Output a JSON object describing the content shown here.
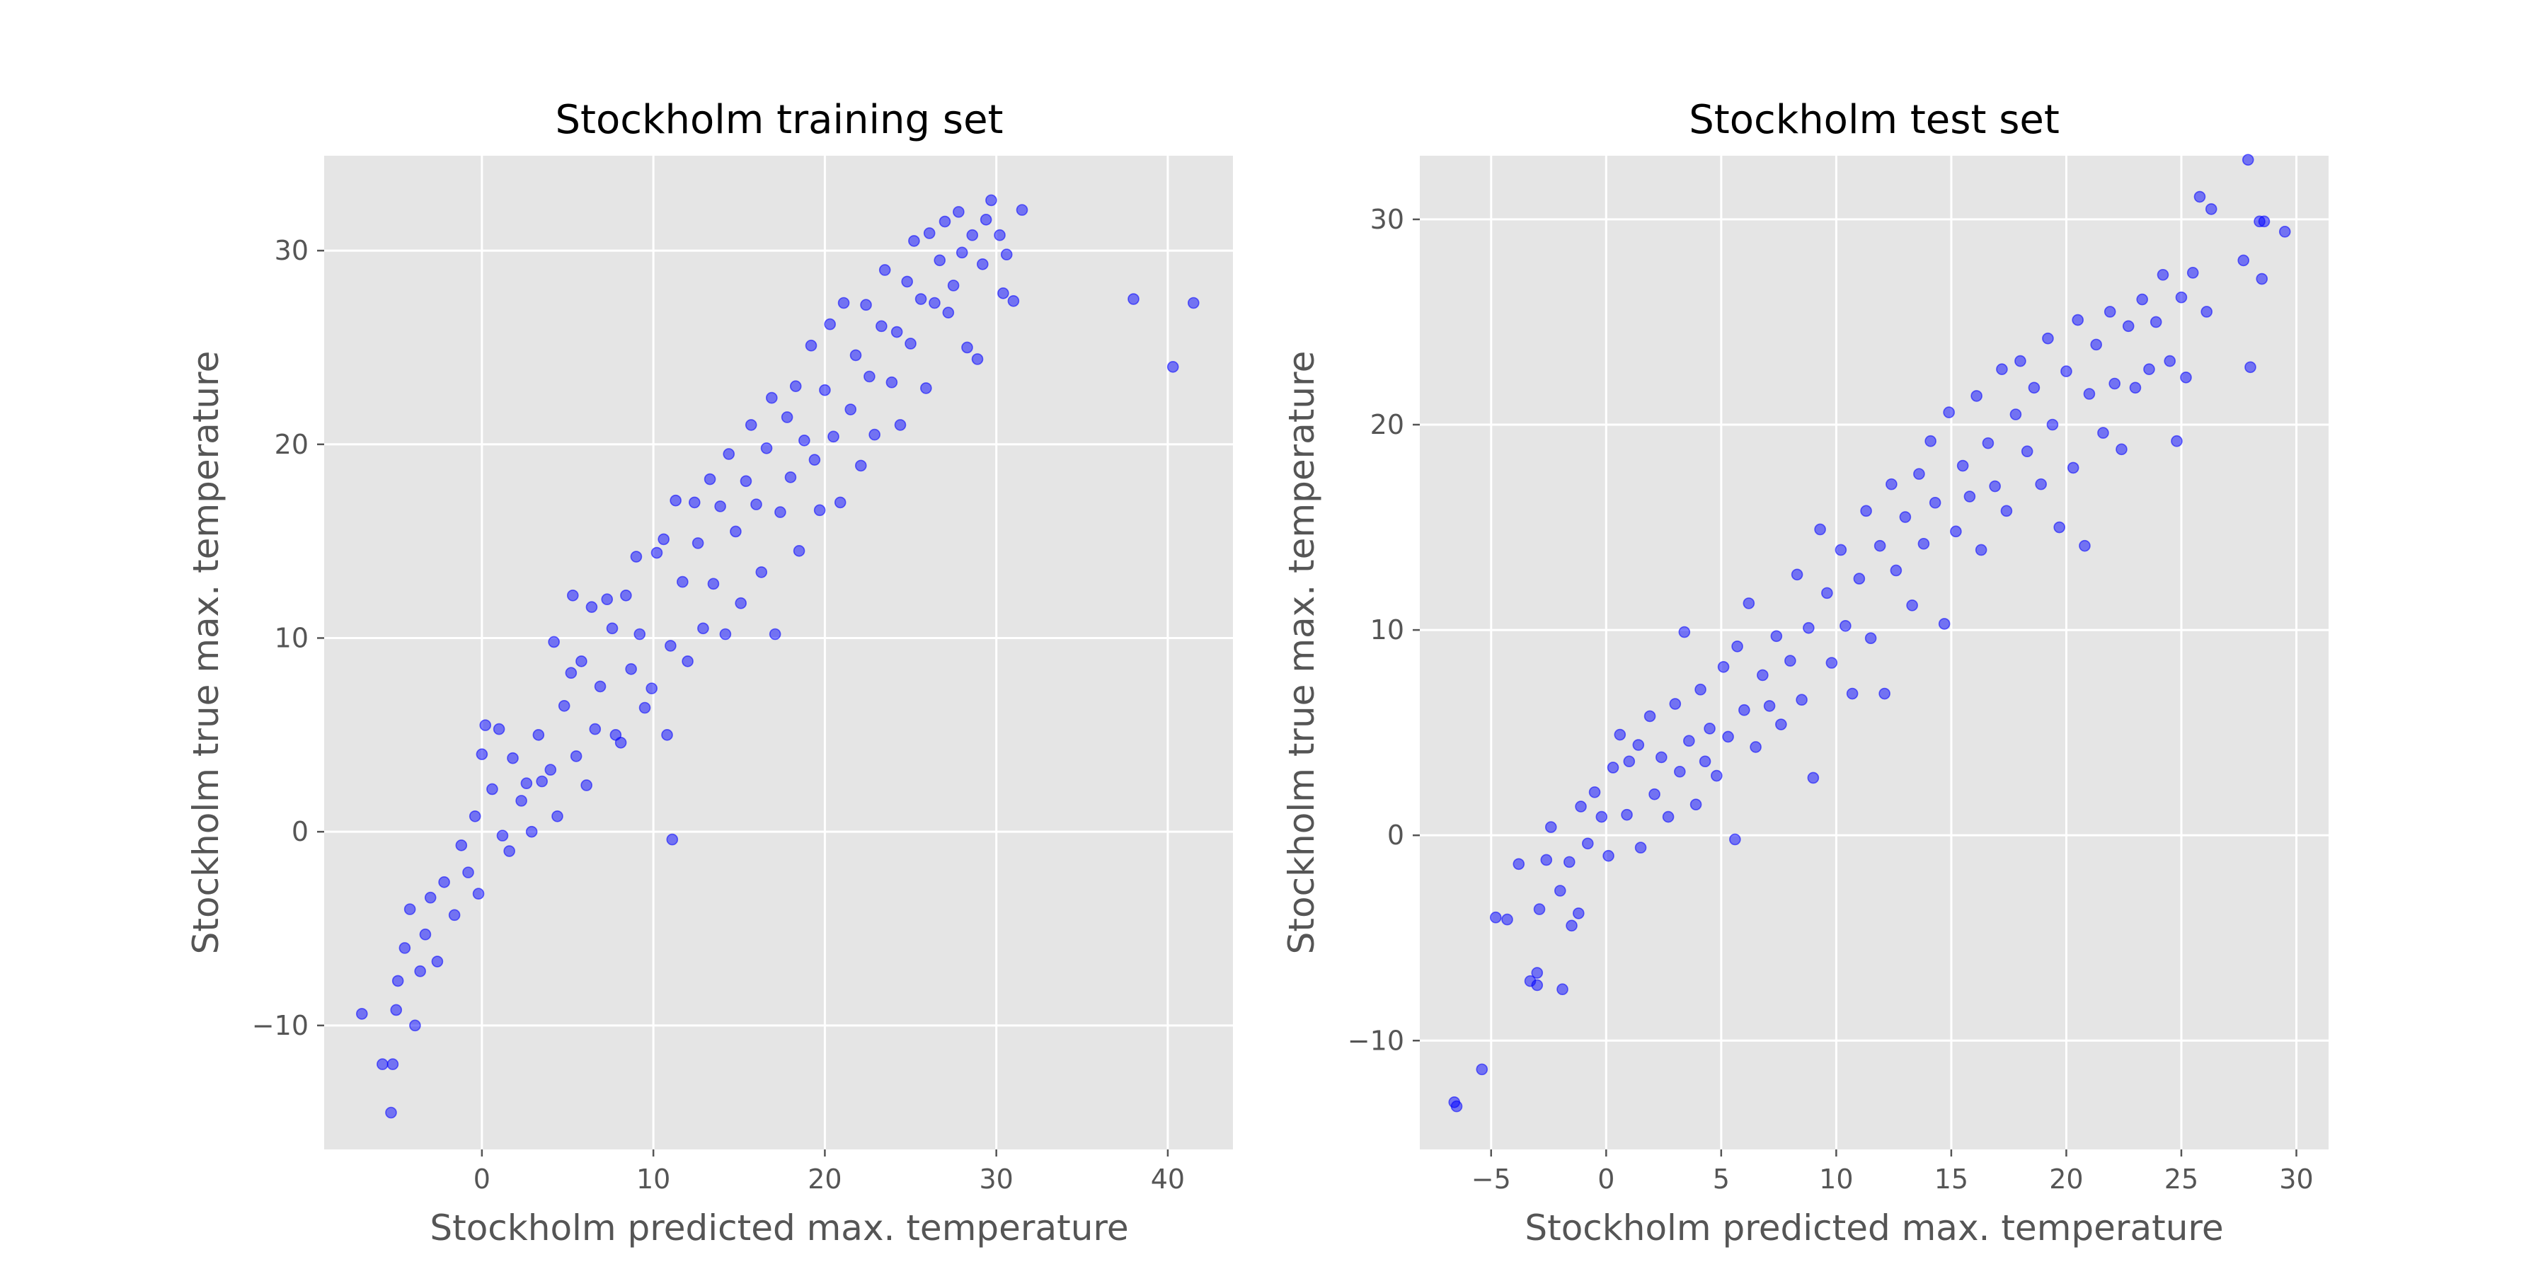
{
  "chart_data": [
    {
      "type": "scatter",
      "title": "Stockholm training set",
      "xlabel": "Stockholm predicted max. temperature",
      "ylabel": "Stockholm true max. temperature",
      "xlim": [
        -9.2,
        43.8
      ],
      "ylim": [
        -16.4,
        34.9
      ],
      "xticks": [
        0,
        10,
        20,
        30,
        40
      ],
      "yticks": [
        -10,
        0,
        10,
        20,
        30
      ],
      "xtick_labels": [
        "0",
        "10",
        "20",
        "30",
        "40"
      ],
      "ytick_labels": [
        "−10",
        "0",
        "10",
        "20",
        "30"
      ],
      "grid": true,
      "color": "#0000ff",
      "points": [
        [
          -7.0,
          -9.4
        ],
        [
          -5.8,
          -12.0
        ],
        [
          -5.2,
          -12.0
        ],
        [
          -5.3,
          -14.5
        ],
        [
          -5.0,
          -9.2
        ],
        [
          -4.9,
          -7.7
        ],
        [
          -4.5,
          -6.0
        ],
        [
          -3.9,
          -10.0
        ],
        [
          -4.2,
          -4.0
        ],
        [
          -3.6,
          -7.2
        ],
        [
          -3.3,
          -5.3
        ],
        [
          -3.0,
          -3.4
        ],
        [
          -2.6,
          -6.7
        ],
        [
          -2.2,
          -2.6
        ],
        [
          -1.6,
          -4.3
        ],
        [
          -1.2,
          -0.7
        ],
        [
          -0.8,
          -2.1
        ],
        [
          -0.4,
          0.8
        ],
        [
          -0.2,
          -3.2
        ],
        [
          0.0,
          4.0
        ],
        [
          0.2,
          5.5
        ],
        [
          0.6,
          2.2
        ],
        [
          1.0,
          5.3
        ],
        [
          1.2,
          -0.2
        ],
        [
          1.6,
          -1.0
        ],
        [
          1.8,
          3.8
        ],
        [
          2.3,
          1.6
        ],
        [
          2.6,
          2.5
        ],
        [
          2.9,
          0.0
        ],
        [
          3.3,
          5.0
        ],
        [
          3.5,
          2.6
        ],
        [
          4.0,
          3.2
        ],
        [
          4.2,
          9.8
        ],
        [
          4.4,
          0.8
        ],
        [
          4.8,
          6.5
        ],
        [
          5.2,
          8.2
        ],
        [
          5.3,
          12.2
        ],
        [
          5.5,
          3.9
        ],
        [
          5.8,
          8.8
        ],
        [
          6.1,
          2.4
        ],
        [
          6.4,
          11.6
        ],
        [
          6.6,
          5.3
        ],
        [
          6.9,
          7.5
        ],
        [
          7.3,
          12.0
        ],
        [
          7.6,
          10.5
        ],
        [
          7.8,
          5.0
        ],
        [
          8.1,
          4.6
        ],
        [
          8.4,
          12.2
        ],
        [
          8.7,
          8.4
        ],
        [
          9.0,
          14.2
        ],
        [
          9.2,
          10.2
        ],
        [
          9.5,
          6.4
        ],
        [
          9.9,
          7.4
        ],
        [
          10.2,
          14.4
        ],
        [
          10.6,
          15.1
        ],
        [
          10.8,
          5.0
        ],
        [
          11.0,
          9.6
        ],
        [
          11.1,
          -0.4
        ],
        [
          11.3,
          17.1
        ],
        [
          11.7,
          12.9
        ],
        [
          12.0,
          8.8
        ],
        [
          12.4,
          17.0
        ],
        [
          12.6,
          14.9
        ],
        [
          12.9,
          10.5
        ],
        [
          13.3,
          18.2
        ],
        [
          13.5,
          12.8
        ],
        [
          13.9,
          16.8
        ],
        [
          14.2,
          10.2
        ],
        [
          14.4,
          19.5
        ],
        [
          14.8,
          15.5
        ],
        [
          15.1,
          11.8
        ],
        [
          15.4,
          18.1
        ],
        [
          15.7,
          21.0
        ],
        [
          16.0,
          16.9
        ],
        [
          16.3,
          13.4
        ],
        [
          16.6,
          19.8
        ],
        [
          16.9,
          22.4
        ],
        [
          17.1,
          10.2
        ],
        [
          17.4,
          16.5
        ],
        [
          17.8,
          21.4
        ],
        [
          18.0,
          18.3
        ],
        [
          18.3,
          23.0
        ],
        [
          18.5,
          14.5
        ],
        [
          18.8,
          20.2
        ],
        [
          19.2,
          25.1
        ],
        [
          19.4,
          19.2
        ],
        [
          19.7,
          16.6
        ],
        [
          20.0,
          22.8
        ],
        [
          20.3,
          26.2
        ],
        [
          20.5,
          20.4
        ],
        [
          20.9,
          17.0
        ],
        [
          21.1,
          27.3
        ],
        [
          21.5,
          21.8
        ],
        [
          21.8,
          24.6
        ],
        [
          22.1,
          18.9
        ],
        [
          22.4,
          27.2
        ],
        [
          22.6,
          23.5
        ],
        [
          22.9,
          20.5
        ],
        [
          23.3,
          26.1
        ],
        [
          23.5,
          29.0
        ],
        [
          23.9,
          23.2
        ],
        [
          24.2,
          25.8
        ],
        [
          24.4,
          21.0
        ],
        [
          24.8,
          28.4
        ],
        [
          25.0,
          25.2
        ],
        [
          25.2,
          30.5
        ],
        [
          25.6,
          27.5
        ],
        [
          25.9,
          22.9
        ],
        [
          26.1,
          30.9
        ],
        [
          26.4,
          27.3
        ],
        [
          26.7,
          29.5
        ],
        [
          27.0,
          31.5
        ],
        [
          27.2,
          26.8
        ],
        [
          27.5,
          28.2
        ],
        [
          27.8,
          32.0
        ],
        [
          28.0,
          29.9
        ],
        [
          28.3,
          25.0
        ],
        [
          28.6,
          30.8
        ],
        [
          28.9,
          24.4
        ],
        [
          29.2,
          29.3
        ],
        [
          29.4,
          31.6
        ],
        [
          29.7,
          32.6
        ],
        [
          30.2,
          30.8
        ],
        [
          30.4,
          27.8
        ],
        [
          30.6,
          29.8
        ],
        [
          31.0,
          27.4
        ],
        [
          31.5,
          32.1
        ],
        [
          38.0,
          27.5
        ],
        [
          40.3,
          24.0
        ],
        [
          41.5,
          27.3
        ]
      ]
    },
    {
      "type": "scatter",
      "title": "Stockholm test set",
      "xlabel": "Stockholm predicted max. temperature",
      "ylabel": "Stockholm true max. temperature",
      "xlim": [
        -8.1,
        31.4
      ],
      "ylim": [
        -15.3,
        33.1
      ],
      "xticks": [
        -5,
        0,
        5,
        10,
        15,
        20,
        25,
        30
      ],
      "yticks": [
        -10,
        0,
        10,
        20,
        30
      ],
      "xtick_labels": [
        "−5",
        "0",
        "5",
        "10",
        "15",
        "20",
        "25",
        "30"
      ],
      "ytick_labels": [
        "−10",
        "0",
        "10",
        "20",
        "30"
      ],
      "grid": true,
      "color": "#0000ff",
      "points": [
        [
          -6.6,
          -13.0
        ],
        [
          -6.5,
          -13.2
        ],
        [
          -5.4,
          -11.4
        ],
        [
          -4.8,
          -4.0
        ],
        [
          -4.3,
          -4.1
        ],
        [
          -3.8,
          -1.4
        ],
        [
          -3.3,
          -7.1
        ],
        [
          -3.0,
          -6.7
        ],
        [
          -3.0,
          -7.3
        ],
        [
          -2.9,
          -3.6
        ],
        [
          -2.6,
          -1.2
        ],
        [
          -2.4,
          0.4
        ],
        [
          -1.9,
          -7.5
        ],
        [
          -2.0,
          -2.7
        ],
        [
          -1.6,
          -1.3
        ],
        [
          -1.5,
          -4.4
        ],
        [
          -1.2,
          -3.8
        ],
        [
          -1.1,
          1.4
        ],
        [
          -0.8,
          -0.4
        ],
        [
          -0.5,
          2.1
        ],
        [
          -0.2,
          0.9
        ],
        [
          0.1,
          -1.0
        ],
        [
          0.3,
          3.3
        ],
        [
          0.6,
          4.9
        ],
        [
          0.9,
          1.0
        ],
        [
          1.0,
          3.6
        ],
        [
          1.4,
          4.4
        ],
        [
          1.5,
          -0.6
        ],
        [
          1.9,
          5.8
        ],
        [
          2.1,
          2.0
        ],
        [
          2.4,
          3.8
        ],
        [
          2.7,
          0.9
        ],
        [
          3.0,
          6.4
        ],
        [
          3.2,
          3.1
        ],
        [
          3.4,
          9.9
        ],
        [
          3.6,
          4.6
        ],
        [
          3.9,
          1.5
        ],
        [
          4.1,
          7.1
        ],
        [
          4.3,
          3.6
        ],
        [
          4.5,
          5.2
        ],
        [
          4.8,
          2.9
        ],
        [
          5.1,
          8.2
        ],
        [
          5.3,
          4.8
        ],
        [
          5.6,
          -0.2
        ],
        [
          5.7,
          9.2
        ],
        [
          6.0,
          6.1
        ],
        [
          6.2,
          11.3
        ],
        [
          6.5,
          4.3
        ],
        [
          6.8,
          7.8
        ],
        [
          7.1,
          6.3
        ],
        [
          7.4,
          9.7
        ],
        [
          7.6,
          5.4
        ],
        [
          8.0,
          8.5
        ],
        [
          8.3,
          12.7
        ],
        [
          8.5,
          6.6
        ],
        [
          8.8,
          10.1
        ],
        [
          9.0,
          2.8
        ],
        [
          9.3,
          14.9
        ],
        [
          9.6,
          11.8
        ],
        [
          9.8,
          8.4
        ],
        [
          10.2,
          13.9
        ],
        [
          10.4,
          10.2
        ],
        [
          10.7,
          6.9
        ],
        [
          11.0,
          12.5
        ],
        [
          11.3,
          15.8
        ],
        [
          11.5,
          9.6
        ],
        [
          11.9,
          14.1
        ],
        [
          12.1,
          6.9
        ],
        [
          12.4,
          17.1
        ],
        [
          12.6,
          12.9
        ],
        [
          13.0,
          15.5
        ],
        [
          13.3,
          11.2
        ],
        [
          13.6,
          17.6
        ],
        [
          13.8,
          14.2
        ],
        [
          14.1,
          19.2
        ],
        [
          14.3,
          16.2
        ],
        [
          14.7,
          10.3
        ],
        [
          14.9,
          20.6
        ],
        [
          15.2,
          14.8
        ],
        [
          15.5,
          18.0
        ],
        [
          15.8,
          16.5
        ],
        [
          16.1,
          21.4
        ],
        [
          16.3,
          13.9
        ],
        [
          16.6,
          19.1
        ],
        [
          16.9,
          17.0
        ],
        [
          17.2,
          22.7
        ],
        [
          17.4,
          15.8
        ],
        [
          17.8,
          20.5
        ],
        [
          18.0,
          23.1
        ],
        [
          18.3,
          18.7
        ],
        [
          18.6,
          21.8
        ],
        [
          18.9,
          17.1
        ],
        [
          19.2,
          24.2
        ],
        [
          19.4,
          20.0
        ],
        [
          19.7,
          15.0
        ],
        [
          20.0,
          22.6
        ],
        [
          20.3,
          17.9
        ],
        [
          20.5,
          25.1
        ],
        [
          20.8,
          14.1
        ],
        [
          21.0,
          21.5
        ],
        [
          21.3,
          23.9
        ],
        [
          21.6,
          19.6
        ],
        [
          21.9,
          25.5
        ],
        [
          22.1,
          22.0
        ],
        [
          22.4,
          18.8
        ],
        [
          22.7,
          24.8
        ],
        [
          23.0,
          21.8
        ],
        [
          23.3,
          26.1
        ],
        [
          23.6,
          22.7
        ],
        [
          23.9,
          25.0
        ],
        [
          24.2,
          27.3
        ],
        [
          24.5,
          23.1
        ],
        [
          24.8,
          19.2
        ],
        [
          25.0,
          26.2
        ],
        [
          25.2,
          22.3
        ],
        [
          25.5,
          27.4
        ],
        [
          25.8,
          31.1
        ],
        [
          26.1,
          25.5
        ],
        [
          26.3,
          30.5
        ],
        [
          27.7,
          28.0
        ],
        [
          28.0,
          22.8
        ],
        [
          27.9,
          32.9
        ],
        [
          28.4,
          29.9
        ],
        [
          28.5,
          27.1
        ],
        [
          28.6,
          29.9
        ],
        [
          29.5,
          29.4
        ]
      ]
    }
  ]
}
